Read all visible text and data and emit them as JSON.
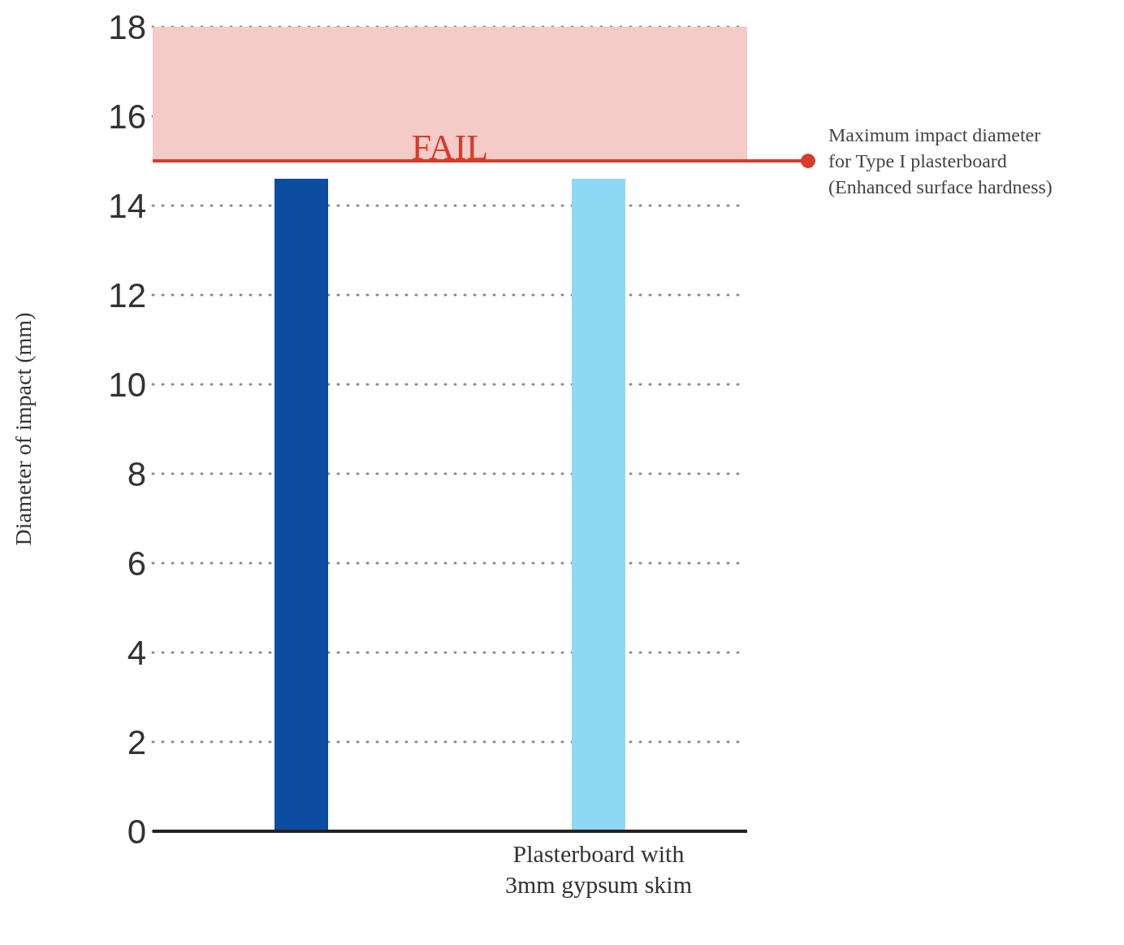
{
  "chart_data": {
    "type": "bar",
    "ylabel": "Diameter of impact (mm)",
    "categories": [
      null,
      "Plasterboard with 3mm gypsum skim"
    ],
    "values": [
      14.6,
      14.6
    ],
    "colors": [
      "#0c4da2",
      "#8dd8f5"
    ],
    "ylim": [
      0,
      18
    ],
    "yticks": [
      0,
      2,
      4,
      6,
      8,
      10,
      12,
      14,
      16,
      18
    ],
    "grid": "y",
    "ref_lines": [
      {
        "axis": "y",
        "value": 15,
        "label": "Maximum impact diameter for Type I plasterboard (Enhanced surface hardness)",
        "color": "#d93a2b"
      }
    ],
    "bands": [
      {
        "axis": "y",
        "from": 15,
        "to": 18,
        "label": "FAIL",
        "color": "#f4cbc6"
      }
    ]
  }
}
